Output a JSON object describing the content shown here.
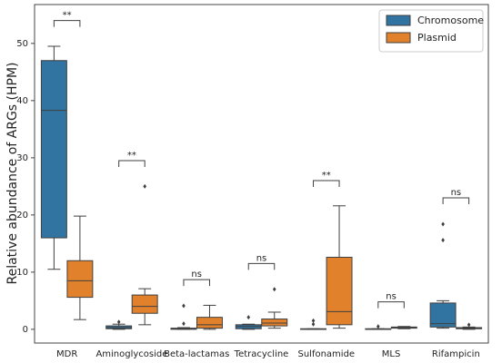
{
  "chart_data": {
    "type": "box",
    "y_label": "Relative abundance of ARGs (HPM)",
    "categories": [
      "MDR",
      "Aminoglycoside",
      "Beta-lactamas",
      "Tetracycline",
      "Sulfonamide",
      "MLS",
      "Rifampicin"
    ],
    "ylim": [
      -2.4,
      56.8
    ],
    "yticks": [
      0,
      10,
      20,
      30,
      40,
      50
    ],
    "legend": "upper right",
    "series": [
      {
        "name": "Chromosome",
        "color": "#3274a1",
        "boxes": [
          {
            "low": 10.5,
            "q1": 16,
            "median": 38.3,
            "q3": 47,
            "high": 49.5,
            "outliers": []
          },
          {
            "low": 0,
            "q1": 0.1,
            "median": 0.3,
            "q3": 0.6,
            "high": 0.9,
            "outliers": [
              1.3
            ]
          },
          {
            "low": 0,
            "q1": 0,
            "median": 0.1,
            "q3": 0.2,
            "high": 0.3,
            "outliers": [
              1.0,
              4.1
            ]
          },
          {
            "low": 0,
            "q1": 0.1,
            "median": 0.5,
            "q3": 0.8,
            "high": 0.9,
            "outliers": [
              2.1
            ]
          },
          {
            "low": 0,
            "q1": 0,
            "median": 0,
            "q3": 0.1,
            "high": 0.1,
            "outliers": [
              0.9,
              1.5
            ]
          },
          {
            "low": 0,
            "q1": 0,
            "median": 0,
            "q3": 0.1,
            "high": 0.1,
            "outliers": [
              0.5
            ]
          },
          {
            "low": 0.2,
            "q1": 0.4,
            "median": 1.0,
            "q3": 4.6,
            "high": 5.0,
            "outliers": [
              15.6,
              18.4
            ]
          }
        ]
      },
      {
        "name": "Plasmid",
        "color": "#e1812c",
        "boxes": [
          {
            "low": 1.7,
            "q1": 5.6,
            "median": 8.5,
            "q3": 12,
            "high": 19.8,
            "outliers": []
          },
          {
            "low": 0.8,
            "q1": 2.8,
            "median": 4,
            "q3": 6,
            "high": 7.1,
            "outliers": [
              25
            ]
          },
          {
            "low": 0,
            "q1": 0.2,
            "median": 0.8,
            "q3": 2.1,
            "high": 4.2,
            "outliers": []
          },
          {
            "low": 0.2,
            "q1": 0.6,
            "median": 1.1,
            "q3": 1.8,
            "high": 3.0,
            "outliers": [
              7.0
            ]
          },
          {
            "low": 0.2,
            "q1": 0.8,
            "median": 3.1,
            "q3": 12.6,
            "high": 21.6,
            "outliers": []
          },
          {
            "low": 0.1,
            "q1": 0.2,
            "median": 0.3,
            "q3": 0.4,
            "high": 0.5,
            "outliers": []
          },
          {
            "low": 0,
            "q1": 0.1,
            "median": 0.2,
            "q3": 0.3,
            "high": 0.4,
            "outliers": [
              0.8
            ]
          }
        ]
      }
    ],
    "annotations": [
      {
        "category": "MDR",
        "y": 54,
        "text": "**"
      },
      {
        "category": "Aminoglycoside",
        "y": 29.5,
        "text": "**"
      },
      {
        "category": "Beta-lactamas",
        "y": 8.7,
        "text": "ns"
      },
      {
        "category": "Tetracycline",
        "y": 11.5,
        "text": "ns"
      },
      {
        "category": "Sulfonamide",
        "y": 26,
        "text": "**"
      },
      {
        "category": "MLS",
        "y": 4.8,
        "text": "ns"
      },
      {
        "category": "Rifampicin",
        "y": 23,
        "text": "ns"
      }
    ]
  }
}
